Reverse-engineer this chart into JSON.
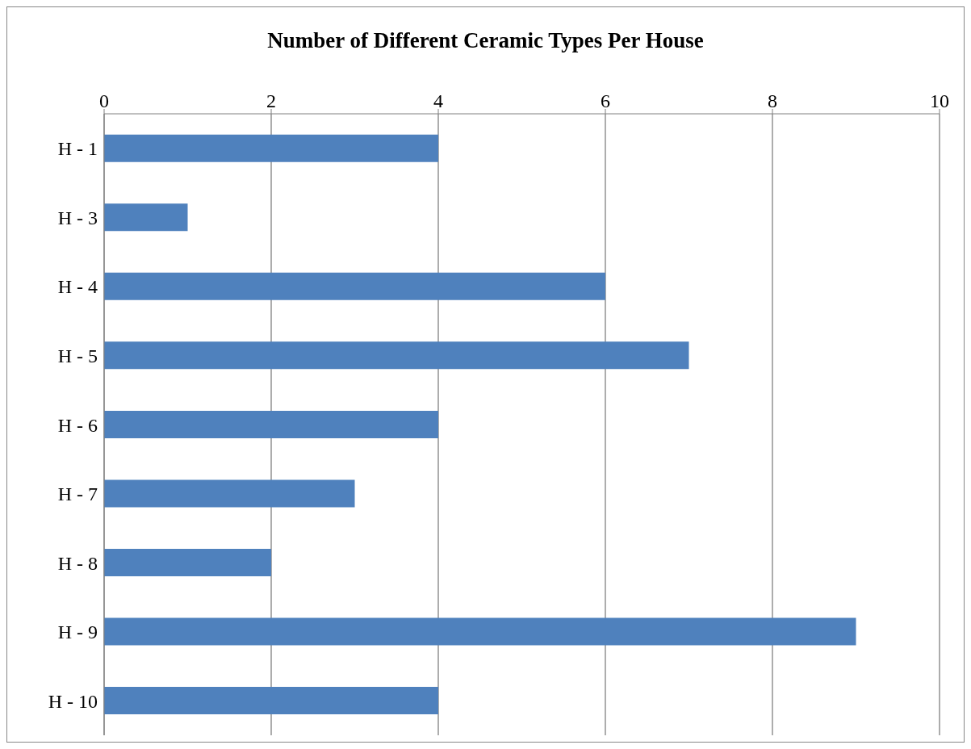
{
  "chart_data": {
    "type": "bar",
    "orientation": "horizontal",
    "title": "Number of Different Ceramic Types Per House",
    "categories": [
      "H - 1",
      "H - 3",
      "H - 4",
      "H - 5",
      "H - 6",
      "H - 7",
      "H - 8",
      "H - 9",
      "H - 10"
    ],
    "values": [
      4,
      1,
      6,
      7,
      4,
      3,
      2,
      9,
      4
    ],
    "color": "#4f81bd",
    "xlim": [
      0,
      10
    ],
    "xticks": [
      0,
      2,
      4,
      6,
      8,
      10
    ],
    "grid": "x",
    "legend": false
  }
}
